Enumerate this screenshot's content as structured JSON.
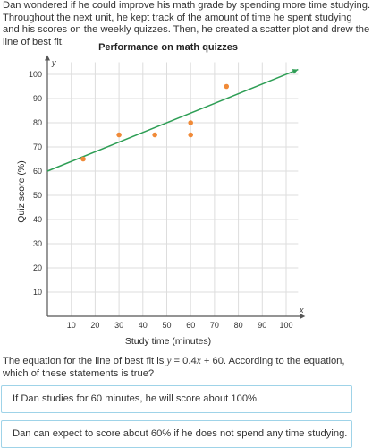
{
  "intro_text": "Dan wondered if he could improve his math grade by spending more time studying. Throughout the next unit, he kept track of the amount of time he spent studying and his scores on the weekly quizzes. Then, he created a scatter plot and drew the line of best fit.",
  "question": {
    "prefix": "The equation for the line of best fit is ",
    "y_var": "y",
    "eq_mid": " = 0.4",
    "x_var": "x",
    "eq_end": " + 60",
    "suffix": ". According to the equation, which of these statements is true?"
  },
  "choices": [
    "If Dan studies for 60 minutes, he will score about 100%.",
    "Dan can expect to score about 60% if he does not spend any time studying."
  ],
  "colors": {
    "point": "#f08a38",
    "line": "#2e9e55",
    "axis": "#555555",
    "grid": "#dddddd"
  },
  "chart_data": {
    "type": "scatter",
    "title": "Performance on math quizzes",
    "xlabel": "Study time (minutes)",
    "ylabel": "Quiz score (%)",
    "x_axis_letter": "x",
    "y_axis_letter": "y",
    "xlim": [
      0,
      105
    ],
    "ylim": [
      0,
      105
    ],
    "x_ticks": [
      10,
      20,
      30,
      40,
      50,
      60,
      70,
      80,
      90,
      100
    ],
    "y_ticks": [
      10,
      20,
      30,
      40,
      50,
      60,
      70,
      80,
      90,
      100
    ],
    "grid": true,
    "points": [
      {
        "x": 15,
        "y": 65
      },
      {
        "x": 30,
        "y": 75
      },
      {
        "x": 45,
        "y": 75
      },
      {
        "x": 60,
        "y": 80
      },
      {
        "x": 60,
        "y": 75
      },
      {
        "x": 75,
        "y": 95
      }
    ],
    "line_of_best_fit": {
      "slope": 0.4,
      "intercept": 60,
      "x_start": 0,
      "x_end": 105
    }
  }
}
